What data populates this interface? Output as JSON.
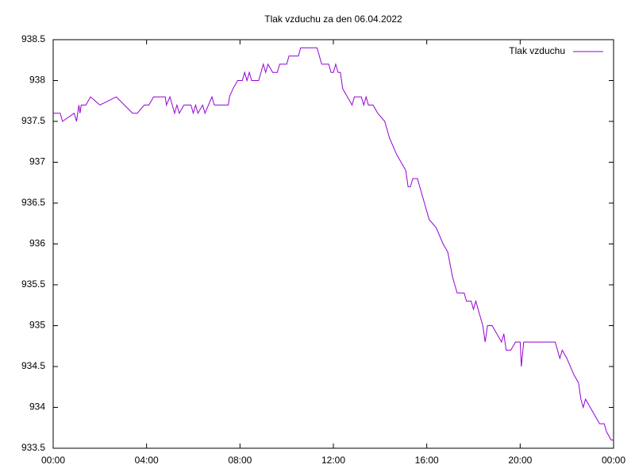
{
  "chart_data": {
    "type": "line",
    "title": "Tlak vzduchu za den 06.04.2022",
    "x": [
      0,
      0.3,
      0.4,
      0.9,
      1.0,
      1.1,
      1.15,
      1.2,
      1.4,
      1.6,
      2.0,
      2.7,
      3.4,
      3.6,
      3.9,
      4.1,
      4.3,
      4.8,
      4.85,
      5.0,
      5.2,
      5.3,
      5.4,
      5.6,
      5.9,
      6.0,
      6.1,
      6.2,
      6.4,
      6.5,
      6.8,
      6.9,
      7.5,
      7.55,
      7.7,
      7.9,
      8.1,
      8.2,
      8.3,
      8.4,
      8.5,
      8.8,
      8.9,
      9.0,
      9.1,
      9.2,
      9.4,
      9.6,
      9.7,
      10.0,
      10.1,
      10.5,
      10.6,
      11.3,
      11.4,
      11.5,
      11.8,
      11.9,
      12.0,
      12.1,
      12.2,
      12.3,
      12.4,
      12.6,
      12.8,
      12.9,
      13.2,
      13.3,
      13.4,
      13.5,
      13.7,
      13.9,
      14.2,
      14.4,
      14.7,
      14.9,
      15.1,
      15.2,
      15.3,
      15.4,
      15.6,
      15.7,
      15.9,
      16.1,
      16.4,
      16.7,
      16.9,
      17.1,
      17.3,
      17.6,
      17.7,
      17.9,
      18.0,
      18.1,
      18.2,
      18.4,
      18.5,
      18.6,
      18.8,
      19.0,
      19.2,
      19.3,
      19.4,
      19.6,
      19.8,
      20.0,
      20.05,
      20.15,
      20.3,
      21.5,
      21.7,
      21.8,
      22.0,
      22.3,
      22.5,
      22.6,
      22.7,
      22.8,
      23.0,
      23.2,
      23.4,
      23.6,
      23.7,
      23.9,
      24.0
    ],
    "series": [
      {
        "name": "Tlak vzduchu",
        "color": "#9400d3",
        "values": [
          937.6,
          937.6,
          937.5,
          937.6,
          937.5,
          937.7,
          937.6,
          937.7,
          937.7,
          937.8,
          937.7,
          937.8,
          937.6,
          937.6,
          937.7,
          937.7,
          937.8,
          937.8,
          937.7,
          937.8,
          937.6,
          937.7,
          937.6,
          937.7,
          937.7,
          937.6,
          937.7,
          937.6,
          937.7,
          937.6,
          937.8,
          937.7,
          937.7,
          937.8,
          937.9,
          938.0,
          938.0,
          938.1,
          938.0,
          938.1,
          938.0,
          938.0,
          938.1,
          938.2,
          938.1,
          938.2,
          938.1,
          938.1,
          938.2,
          938.2,
          938.3,
          938.3,
          938.4,
          938.4,
          938.3,
          938.2,
          938.2,
          938.1,
          938.1,
          938.2,
          938.1,
          938.1,
          937.9,
          937.8,
          937.7,
          937.8,
          937.8,
          937.7,
          937.8,
          937.7,
          937.7,
          937.6,
          937.5,
          937.3,
          937.1,
          937.0,
          936.9,
          936.7,
          936.7,
          936.8,
          936.8,
          936.7,
          936.5,
          936.3,
          936.2,
          936.0,
          935.9,
          935.6,
          935.4,
          935.4,
          935.3,
          935.3,
          935.2,
          935.3,
          935.2,
          935.0,
          934.8,
          935.0,
          935.0,
          934.9,
          934.8,
          934.9,
          934.7,
          934.7,
          934.8,
          934.8,
          934.5,
          934.8,
          934.8,
          934.8,
          934.6,
          934.7,
          934.6,
          934.4,
          934.3,
          934.1,
          934.0,
          934.1,
          934.0,
          933.9,
          933.8,
          933.8,
          933.7,
          933.6,
          933.6
        ]
      }
    ],
    "xlim": [
      0,
      24
    ],
    "xticks": [
      {
        "value": 0,
        "label": "00:00"
      },
      {
        "value": 4,
        "label": "04:00"
      },
      {
        "value": 8,
        "label": "08:00"
      },
      {
        "value": 12,
        "label": "12:00"
      },
      {
        "value": 16,
        "label": "16:00"
      },
      {
        "value": 20,
        "label": "20:00"
      },
      {
        "value": 24,
        "label": "00:00"
      }
    ],
    "ylim": [
      933.5,
      938.5
    ],
    "yticks": [
      933.5,
      934,
      934.5,
      935,
      935.5,
      936,
      936.5,
      937,
      937.5,
      938,
      938.5
    ],
    "legend": "top-right",
    "grid": false
  }
}
